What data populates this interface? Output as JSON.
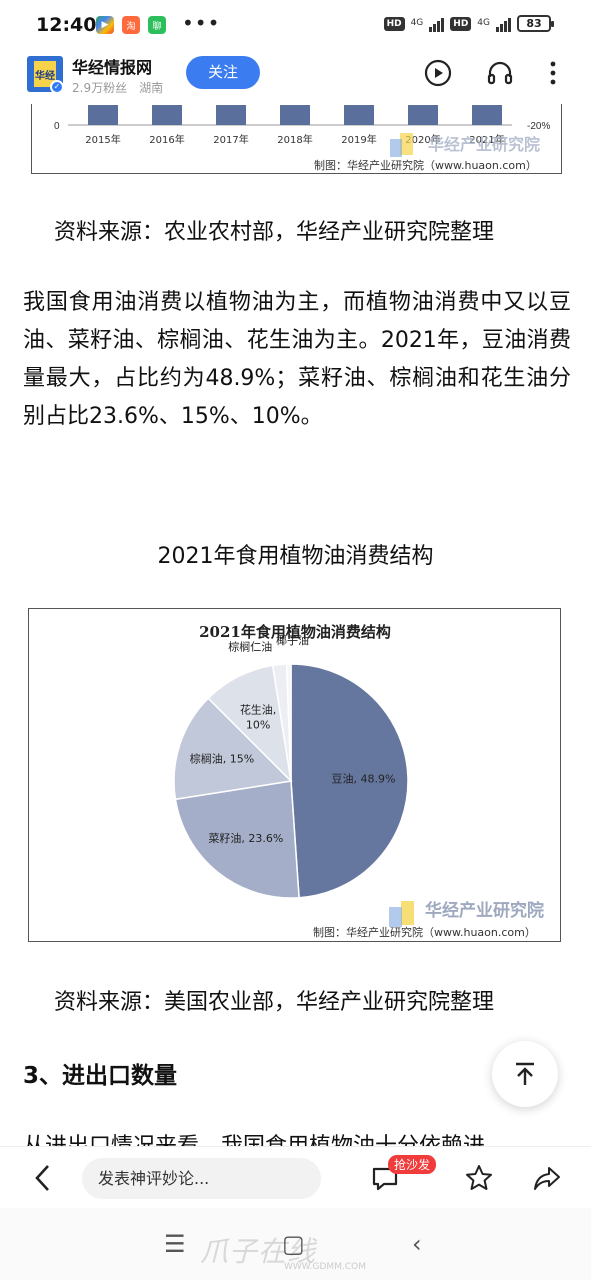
{
  "status_bar": {
    "time": "12:40",
    "battery": "83",
    "hd_label": "HD",
    "network_label": "4G"
  },
  "header": {
    "account_name": "华经情报网",
    "followers": "2.9万粉丝",
    "location": "湖南",
    "follow_label": "关注",
    "avatar_text": "华经"
  },
  "chart_top": {
    "y_tick_left": "0",
    "y_tick_right": "-20%",
    "years": [
      "2015年",
      "2016年",
      "2017年",
      "2018年",
      "2019年",
      "2020年",
      "2021年"
    ],
    "watermark": "华经产业研究院",
    "credit": "制图：华经产业研究院（www.huaon.com）",
    "bar_color": "#5b6f9c"
  },
  "article": {
    "source_1": "资料来源：农业农村部，华经产业研究院整理",
    "paragraph": "我国食用油消费以植物油为主，而植物油消费中又以豆油、菜籽油、棕榈油、花生油为主。2021年，豆油消费量最大，占比约为48.9%；菜籽油、棕榈油和花生油分别占比23.6%、15%、10%。",
    "figure_caption": "2021年食用植物油消费结构",
    "source_2": "资料来源：美国农业部，华经产业研究院整理",
    "section_heading": "3、进出口数量",
    "next_paragraph": "从进出口情况来看，我国食用植物油十分依赖进"
  },
  "chart_data": {
    "type": "pie",
    "title": "2021年食用植物油消费结构",
    "slices": [
      {
        "label": "豆油",
        "value": 48.9,
        "display": "豆油, 48.9%",
        "color": "#66779f"
      },
      {
        "label": "菜籽油",
        "value": 23.6,
        "display": "菜籽油, 23.6%",
        "color": "#a4aec8"
      },
      {
        "label": "棕榈油",
        "value": 15,
        "display": "棕榈油, 15%",
        "color": "#c1c8d9"
      },
      {
        "label": "花生油",
        "value": 10,
        "display": "花生油, 10%",
        "color": "#dde1ea"
      },
      {
        "label": "棕榈仁油",
        "value": 1.9,
        "display": "棕榈仁油",
        "color": "#eceef3"
      },
      {
        "label": "椰子油",
        "value": 0.6,
        "display": "椰子油",
        "color": "#f6f7fa"
      }
    ],
    "watermark": "华经产业研究院",
    "credit": "制图：华经产业研究院（www.huaon.com）"
  },
  "bottom_bar": {
    "comment_placeholder": "发表神评妙论...",
    "sofa_badge": "抢沙发"
  },
  "nav_bar": {
    "watermark": "爪子在线",
    "watermark_url": "WWW.GDMM.COM"
  }
}
